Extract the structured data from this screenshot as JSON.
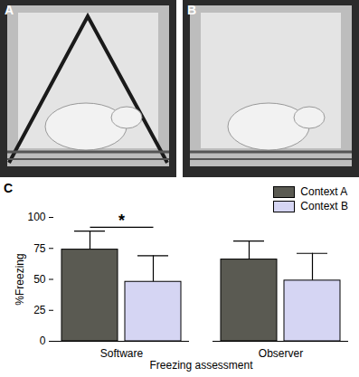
{
  "panel_labels": [
    "A",
    "B",
    "C"
  ],
  "chart_data": {
    "type": "bar",
    "categories": [
      "Software",
      "Observer"
    ],
    "series": [
      {
        "name": "Context A",
        "color": "#5a5a52",
        "values": [
          74,
          66
        ],
        "errors": [
          15,
          15
        ]
      },
      {
        "name": "Context B",
        "color": "#d5d5f3",
        "values": [
          48,
          49
        ],
        "errors": [
          21,
          22
        ]
      }
    ],
    "xlabel": "Freezing assessment",
    "ylabel": "%Freezing",
    "ylim": [
      0,
      100
    ],
    "yticks": [
      0,
      25,
      50,
      75,
      100
    ],
    "legend": "top-right",
    "annotations": [
      {
        "text": "*",
        "category": "Software",
        "between": [
          "Context A",
          "Context B"
        ]
      }
    ]
  }
}
